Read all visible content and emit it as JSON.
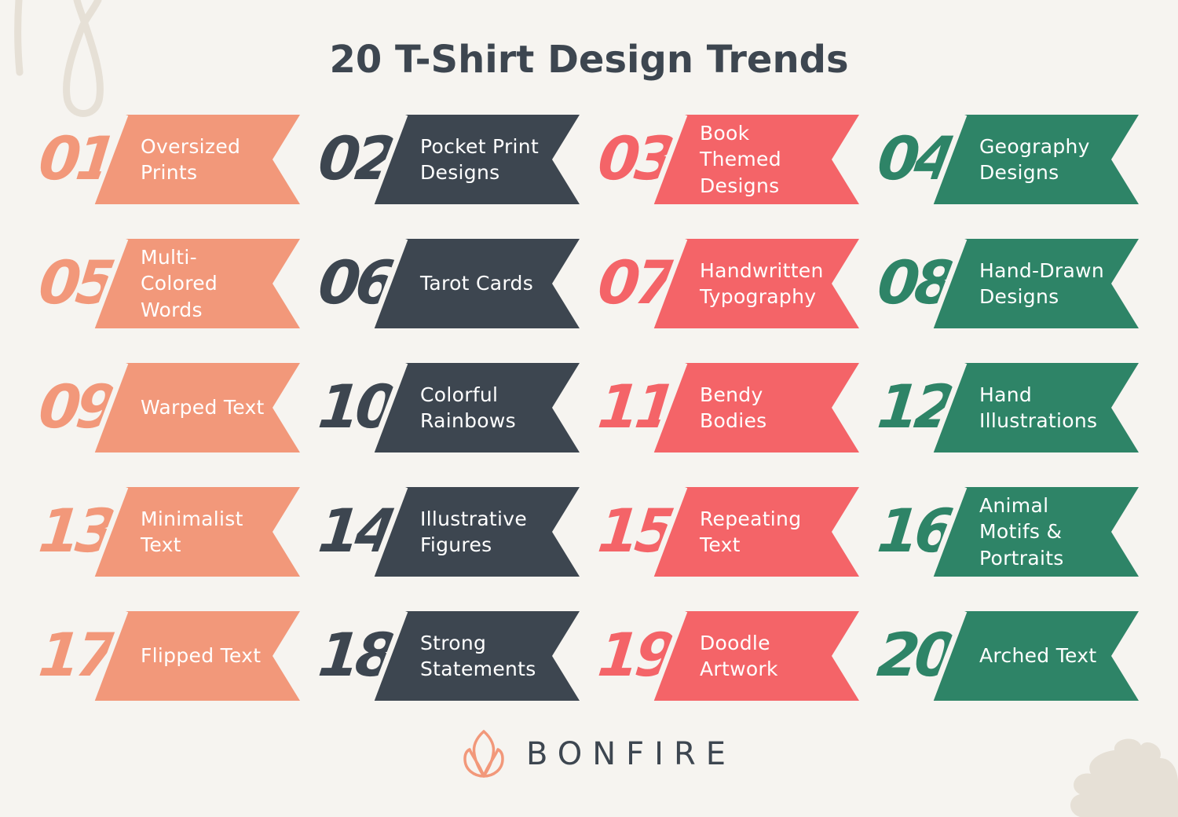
{
  "title": "20 T-Shirt Design Trends",
  "colors": {
    "background": "#F6F4F0",
    "salmon": "#F2987A",
    "slate": "#3D4650",
    "coral": "#F46468",
    "green": "#2E8467",
    "decoration": "#E6E0D6"
  },
  "trends": [
    {
      "number": "01",
      "lines": [
        "Oversized",
        "Prints"
      ],
      "color": "salmon"
    },
    {
      "number": "02",
      "lines": [
        "Pocket Print",
        "Designs"
      ],
      "color": "slate"
    },
    {
      "number": "03",
      "lines": [
        "Book",
        "Themed",
        "Designs"
      ],
      "color": "coral"
    },
    {
      "number": "04",
      "lines": [
        "Geography",
        "Designs"
      ],
      "color": "green"
    },
    {
      "number": "05",
      "lines": [
        "Multi-",
        "Colored",
        "Words"
      ],
      "color": "salmon"
    },
    {
      "number": "06",
      "lines": [
        "Tarot Cards"
      ],
      "color": "slate"
    },
    {
      "number": "07",
      "lines": [
        "Handwritten",
        "Typography"
      ],
      "color": "coral"
    },
    {
      "number": "08",
      "lines": [
        "Hand-Drawn",
        "Designs"
      ],
      "color": "green"
    },
    {
      "number": "09",
      "lines": [
        "Warped Text"
      ],
      "color": "salmon"
    },
    {
      "number": "10",
      "lines": [
        "Colorful",
        "Rainbows"
      ],
      "color": "slate"
    },
    {
      "number": "11",
      "lines": [
        "Bendy",
        "Bodies"
      ],
      "color": "coral"
    },
    {
      "number": "12",
      "lines": [
        "Hand",
        "Illustrations"
      ],
      "color": "green"
    },
    {
      "number": "13",
      "lines": [
        "Minimalist",
        "Text"
      ],
      "color": "salmon"
    },
    {
      "number": "14",
      "lines": [
        "Illustrative",
        "Figures"
      ],
      "color": "slate"
    },
    {
      "number": "15",
      "lines": [
        "Repeating",
        "Text"
      ],
      "color": "coral"
    },
    {
      "number": "16",
      "lines": [
        "Animal",
        "Motifs &",
        "Portraits"
      ],
      "color": "green"
    },
    {
      "number": "17",
      "lines": [
        "Flipped Text"
      ],
      "color": "salmon"
    },
    {
      "number": "18",
      "lines": [
        "Strong",
        "Statements"
      ],
      "color": "slate"
    },
    {
      "number": "19",
      "lines": [
        "Doodle",
        "Artwork"
      ],
      "color": "coral"
    },
    {
      "number": "20",
      "lines": [
        "Arched Text"
      ],
      "color": "green"
    }
  ],
  "footer": {
    "brand": "BONFIRE",
    "logo_icon": "lotus-flame-icon"
  }
}
